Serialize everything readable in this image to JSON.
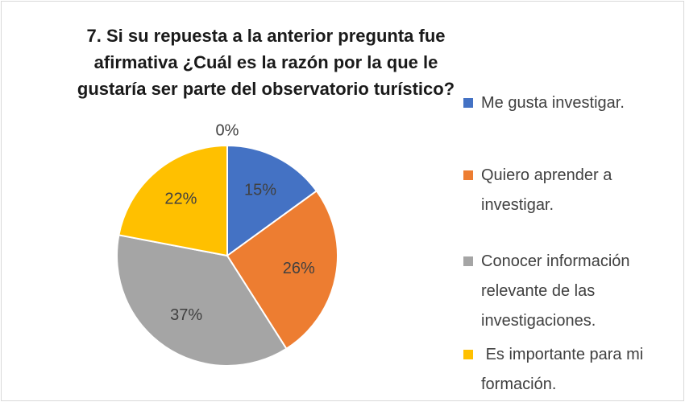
{
  "chart_data": {
    "type": "pie",
    "title": "7. Si su repuesta a la anterior pregunta fue afirmativa ¿Cuál es la razón por la que le gustaría ser parte del observatorio turístico?",
    "categories": [
      "Me gusta investigar.",
      "Quiero aprender a investigar.",
      "Conocer información relevante de las investigaciones.",
      " Es importante para mi formación.",
      null
    ],
    "values": [
      15,
      26,
      37,
      22,
      0
    ],
    "value_labels": [
      "15%",
      "26%",
      "37%",
      "22%",
      "0%"
    ],
    "colors": [
      "#4472c4",
      "#ed7d31",
      "#a5a5a5",
      "#ffc000",
      null
    ]
  }
}
